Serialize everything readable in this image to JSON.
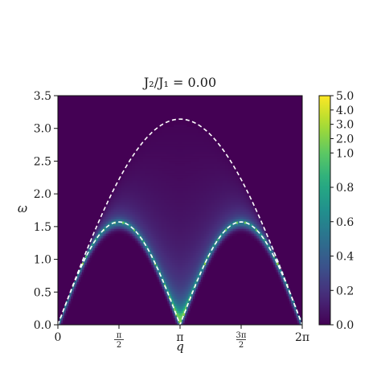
{
  "chart_data": {
    "type": "heatmap",
    "title": "J₂/J₁ = 0.00",
    "xlabel": "q",
    "ylabel": "ω",
    "xlim": [
      0,
      6.2832
    ],
    "ylim": [
      0,
      3.5
    ],
    "x_ticks": [
      {
        "value": 0,
        "label": "0"
      },
      {
        "value": 1.5708,
        "label": "π",
        "fraction_denominator": "2"
      },
      {
        "value": 3.1416,
        "label": "π"
      },
      {
        "value": 4.7124,
        "label": "3π",
        "fraction_denominator": "2"
      },
      {
        "value": 6.2832,
        "label": "2π"
      }
    ],
    "y_ticks": [
      "0.0",
      "0.5",
      "1.0",
      "1.5",
      "2.0",
      "2.5",
      "3.0",
      "3.5"
    ],
    "colorbar": {
      "colormap": "viridis",
      "scale": "symlog-like",
      "ticks": [
        "0.0",
        "0.2",
        "0.4",
        "0.6",
        "0.8",
        "1.0",
        "2.0",
        "3.0",
        "4.0",
        "5.0"
      ],
      "range": [
        0,
        5.0
      ]
    },
    "overlays": [
      {
        "name": "lower boundary",
        "style": "dashed",
        "color": "#ffffff",
        "formula": "π/2 |sin q|"
      },
      {
        "name": "upper boundary",
        "style": "dashed",
        "color": "#ffffff",
        "formula": "π |sin(q/2)|"
      }
    ],
    "grid": false
  },
  "colors": {
    "background_min": "#440154",
    "mid": "#21918c",
    "max": "#fde725",
    "overlay": "#ffffff"
  }
}
